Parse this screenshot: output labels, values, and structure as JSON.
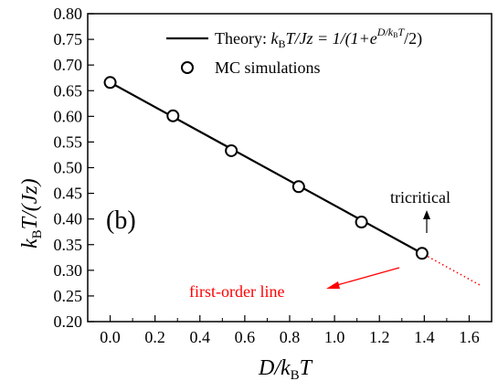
{
  "chart_data": {
    "type": "line",
    "xlim": [
      -0.1,
      1.7
    ],
    "ylim": [
      0.2,
      0.8
    ],
    "x_ticks": [
      "0.0",
      "0.2",
      "0.4",
      "0.6",
      "0.8",
      "1.0",
      "1.2",
      "1.4",
      "1.6"
    ],
    "y_ticks": [
      "0.20",
      "0.25",
      "0.30",
      "0.35",
      "0.40",
      "0.45",
      "0.50",
      "0.55",
      "0.60",
      "0.65",
      "0.70",
      "0.75",
      "0.80"
    ],
    "xlabel": {
      "main": "D/k",
      "sub": "B",
      "tail": "T"
    },
    "ylabel": {
      "main": "k",
      "sub": "B",
      "tail": "T/(Jz)"
    },
    "panel_label": "(b)",
    "legend": {
      "theory": {
        "prefix": "Theory: ",
        "k": "k",
        "sub": "B",
        "mid": "T/Jz = 1/(1+e",
        "exp": "D/k",
        "exp_sub": "B",
        "exp_tail": "T",
        "end": "/2)"
      },
      "mc": "MC simulations"
    },
    "series": [
      {
        "name": "Theory",
        "style": "solid",
        "color": "#000000",
        "x_range": [
          0.0,
          1.4
        ]
      },
      {
        "name": "MC simulations",
        "style": "open-circle",
        "color": "#000000",
        "points": [
          [
            0.0,
            0.666
          ],
          [
            0.28,
            0.601
          ],
          [
            0.54,
            0.533
          ],
          [
            0.84,
            0.463
          ],
          [
            1.12,
            0.394
          ],
          [
            1.39,
            0.333
          ]
        ]
      }
    ],
    "dotted_extension": {
      "color": "#ff0000",
      "x_range": [
        1.4,
        1.655
      ]
    },
    "annotations": {
      "tricritical": {
        "text": "tricritical",
        "color": "#000000"
      },
      "first_order": {
        "text": "first-order line",
        "color": "#ff0000"
      }
    }
  }
}
